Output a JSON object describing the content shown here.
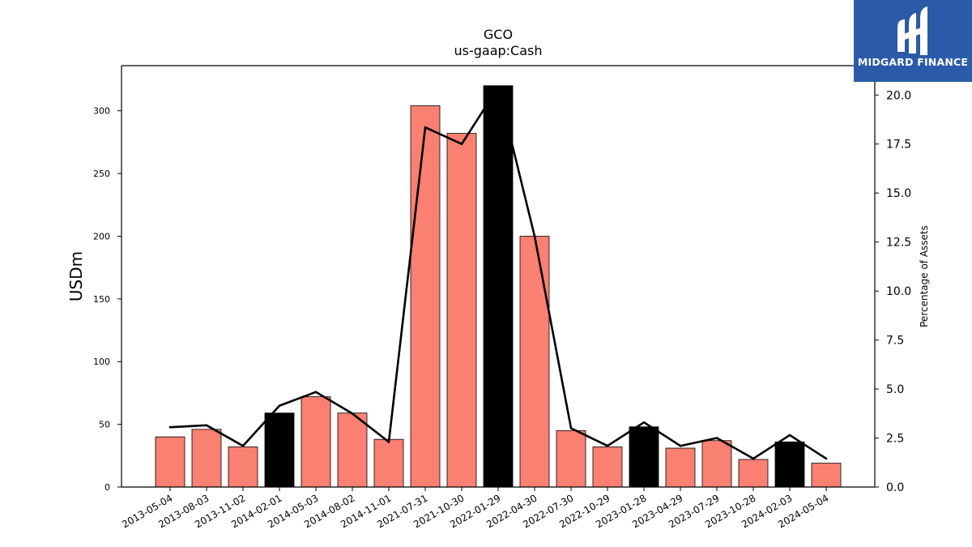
{
  "chart_data": {
    "type": "bar",
    "title": "GCO",
    "subtitle": "us-gaap:Cash",
    "ylabel": "USDm",
    "y2label": "Percentage of Assets",
    "ylim": [
      0,
      336
    ],
    "y2lim": [
      0,
      21.5
    ],
    "yticks": [
      0,
      50,
      100,
      150,
      200,
      250,
      300
    ],
    "y2ticks": [
      "0.0",
      "2.5",
      "5.0",
      "7.5",
      "10.0",
      "12.5",
      "15.0",
      "17.5",
      "20.0"
    ],
    "categories": [
      "2013-05-04",
      "2013-08-03",
      "2013-11-02",
      "2014-02-01",
      "2014-05-03",
      "2014-08-02",
      "2014-11-01",
      "2021-07-31",
      "2021-10-30",
      "2022-01-29",
      "2022-04-30",
      "2022-07-30",
      "2022-10-29",
      "2023-01-28",
      "2023-04-29",
      "2023-07-29",
      "2023-10-28",
      "2024-02-03",
      "2024-05-04"
    ],
    "series": [
      {
        "type": "bar",
        "axis": "left",
        "values": [
          40,
          46,
          32,
          59,
          72,
          59,
          38,
          304,
          282,
          320,
          200,
          45,
          32,
          48,
          31,
          37,
          22,
          36,
          19
        ],
        "highlight": [
          false,
          false,
          false,
          true,
          false,
          false,
          false,
          false,
          false,
          true,
          false,
          false,
          false,
          true,
          false,
          false,
          false,
          true,
          false
        ]
      },
      {
        "type": "line",
        "axis": "right",
        "values": [
          3.05,
          3.15,
          2.1,
          4.15,
          4.85,
          3.75,
          2.3,
          18.35,
          17.5,
          20.4,
          12.8,
          3.0,
          2.1,
          3.3,
          2.1,
          2.5,
          1.45,
          2.65,
          1.45
        ]
      }
    ],
    "colors": {
      "bar": "#fa8072",
      "bar_highlight": "#000000",
      "line": "#000000"
    }
  },
  "logo": {
    "text": "MIDGARD FINANCE",
    "background": "#2b5ba8"
  }
}
